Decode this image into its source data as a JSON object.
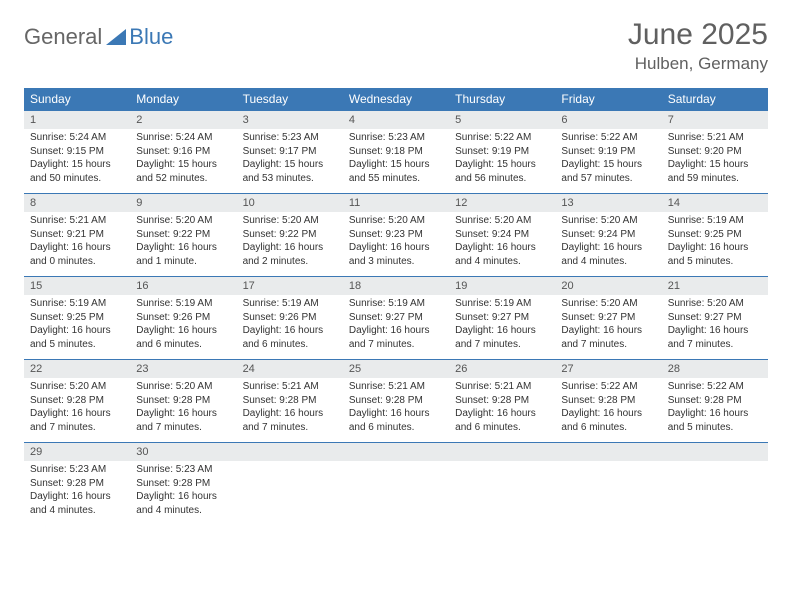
{
  "logo": {
    "general": "General",
    "blue": "Blue"
  },
  "title": {
    "month": "June 2025",
    "location": "Hulben, Germany"
  },
  "colors": {
    "header_blue": "#3b78b5",
    "row_gray": "#e9ebec",
    "text_gray": "#555555",
    "body_text": "#333333",
    "white": "#ffffff"
  },
  "daynames": [
    "Sunday",
    "Monday",
    "Tuesday",
    "Wednesday",
    "Thursday",
    "Friday",
    "Saturday"
  ],
  "weeks": [
    {
      "nums": [
        "1",
        "2",
        "3",
        "4",
        "5",
        "6",
        "7"
      ],
      "cells": [
        {
          "sr": "5:24 AM",
          "ss": "9:15 PM",
          "dl": "15 hours and 50 minutes."
        },
        {
          "sr": "5:24 AM",
          "ss": "9:16 PM",
          "dl": "15 hours and 52 minutes."
        },
        {
          "sr": "5:23 AM",
          "ss": "9:17 PM",
          "dl": "15 hours and 53 minutes."
        },
        {
          "sr": "5:23 AM",
          "ss": "9:18 PM",
          "dl": "15 hours and 55 minutes."
        },
        {
          "sr": "5:22 AM",
          "ss": "9:19 PM",
          "dl": "15 hours and 56 minutes."
        },
        {
          "sr": "5:22 AM",
          "ss": "9:19 PM",
          "dl": "15 hours and 57 minutes."
        },
        {
          "sr": "5:21 AM",
          "ss": "9:20 PM",
          "dl": "15 hours and 59 minutes."
        }
      ]
    },
    {
      "nums": [
        "8",
        "9",
        "10",
        "11",
        "12",
        "13",
        "14"
      ],
      "cells": [
        {
          "sr": "5:21 AM",
          "ss": "9:21 PM",
          "dl": "16 hours and 0 minutes."
        },
        {
          "sr": "5:20 AM",
          "ss": "9:22 PM",
          "dl": "16 hours and 1 minute."
        },
        {
          "sr": "5:20 AM",
          "ss": "9:22 PM",
          "dl": "16 hours and 2 minutes."
        },
        {
          "sr": "5:20 AM",
          "ss": "9:23 PM",
          "dl": "16 hours and 3 minutes."
        },
        {
          "sr": "5:20 AM",
          "ss": "9:24 PM",
          "dl": "16 hours and 4 minutes."
        },
        {
          "sr": "5:20 AM",
          "ss": "9:24 PM",
          "dl": "16 hours and 4 minutes."
        },
        {
          "sr": "5:19 AM",
          "ss": "9:25 PM",
          "dl": "16 hours and 5 minutes."
        }
      ]
    },
    {
      "nums": [
        "15",
        "16",
        "17",
        "18",
        "19",
        "20",
        "21"
      ],
      "cells": [
        {
          "sr": "5:19 AM",
          "ss": "9:25 PM",
          "dl": "16 hours and 5 minutes."
        },
        {
          "sr": "5:19 AM",
          "ss": "9:26 PM",
          "dl": "16 hours and 6 minutes."
        },
        {
          "sr": "5:19 AM",
          "ss": "9:26 PM",
          "dl": "16 hours and 6 minutes."
        },
        {
          "sr": "5:19 AM",
          "ss": "9:27 PM",
          "dl": "16 hours and 7 minutes."
        },
        {
          "sr": "5:19 AM",
          "ss": "9:27 PM",
          "dl": "16 hours and 7 minutes."
        },
        {
          "sr": "5:20 AM",
          "ss": "9:27 PM",
          "dl": "16 hours and 7 minutes."
        },
        {
          "sr": "5:20 AM",
          "ss": "9:27 PM",
          "dl": "16 hours and 7 minutes."
        }
      ]
    },
    {
      "nums": [
        "22",
        "23",
        "24",
        "25",
        "26",
        "27",
        "28"
      ],
      "cells": [
        {
          "sr": "5:20 AM",
          "ss": "9:28 PM",
          "dl": "16 hours and 7 minutes."
        },
        {
          "sr": "5:20 AM",
          "ss": "9:28 PM",
          "dl": "16 hours and 7 minutes."
        },
        {
          "sr": "5:21 AM",
          "ss": "9:28 PM",
          "dl": "16 hours and 7 minutes."
        },
        {
          "sr": "5:21 AM",
          "ss": "9:28 PM",
          "dl": "16 hours and 6 minutes."
        },
        {
          "sr": "5:21 AM",
          "ss": "9:28 PM",
          "dl": "16 hours and 6 minutes."
        },
        {
          "sr": "5:22 AM",
          "ss": "9:28 PM",
          "dl": "16 hours and 6 minutes."
        },
        {
          "sr": "5:22 AM",
          "ss": "9:28 PM",
          "dl": "16 hours and 5 minutes."
        }
      ]
    },
    {
      "nums": [
        "29",
        "30",
        "",
        "",
        "",
        "",
        ""
      ],
      "cells": [
        {
          "sr": "5:23 AM",
          "ss": "9:28 PM",
          "dl": "16 hours and 4 minutes."
        },
        {
          "sr": "5:23 AM",
          "ss": "9:28 PM",
          "dl": "16 hours and 4 minutes."
        },
        null,
        null,
        null,
        null,
        null
      ]
    }
  ],
  "labels": {
    "sunrise": "Sunrise: ",
    "sunset": "Sunset: ",
    "daylight": "Daylight: "
  }
}
